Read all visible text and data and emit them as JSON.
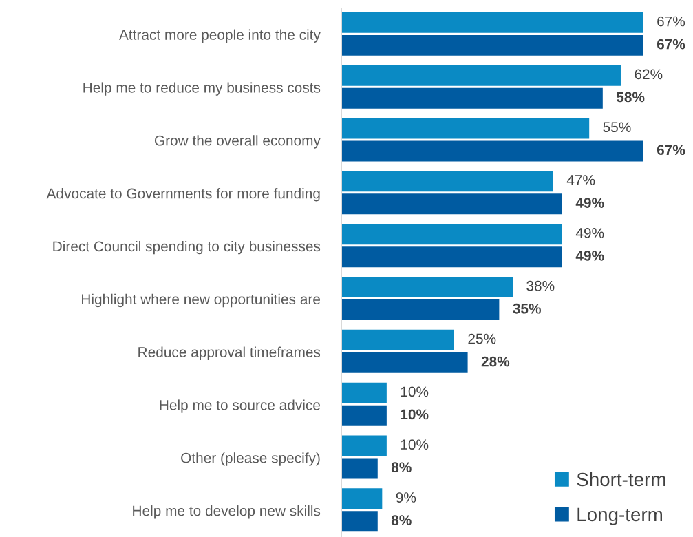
{
  "chart_data": {
    "type": "bar",
    "orientation": "horizontal",
    "legend": "bottom right",
    "grid": false,
    "categories": [
      "Attract more people into the city",
      "Help me to reduce my business costs",
      "Grow the overall economy",
      "Advocate to Governments for more funding",
      "Direct Council spending to city businesses",
      "Highlight where new opportunities are",
      "Reduce approval timeframes",
      "Help me to source advice",
      "Other (please specify)",
      "Help me to develop new skills"
    ],
    "series": [
      {
        "name": "Short-term",
        "color": "#0a8ac4",
        "values": [
          67,
          62,
          55,
          47,
          49,
          38,
          25,
          10,
          10,
          9
        ],
        "value_labels": [
          "67%",
          "62%",
          "55%",
          "47%",
          "49%",
          "38%",
          "25%",
          "10%",
          "10%",
          "9%"
        ]
      },
      {
        "name": "Long-term",
        "color": "#005ba1",
        "values": [
          67,
          58,
          67,
          49,
          49,
          35,
          28,
          10,
          8,
          8
        ],
        "value_labels": [
          "67%",
          "58%",
          "67%",
          "49%",
          "49%",
          "35%",
          "28%",
          "10%",
          "8%",
          "8%"
        ]
      }
    ]
  }
}
